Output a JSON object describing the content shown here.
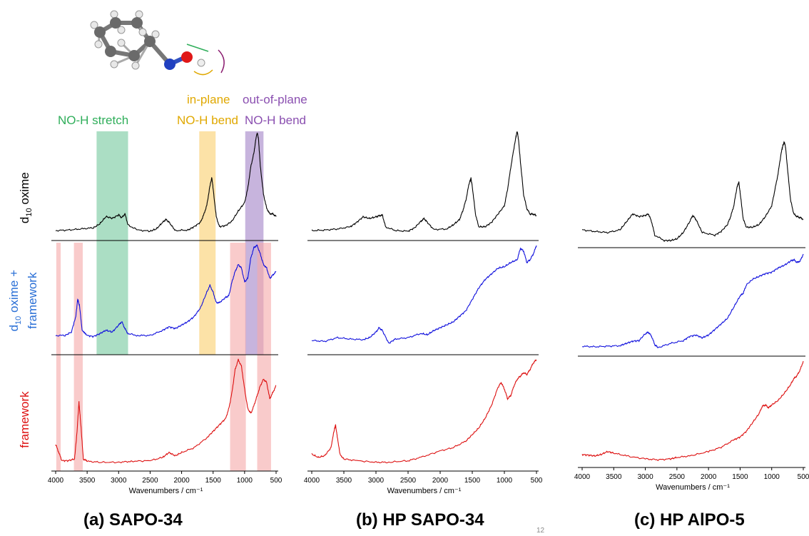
{
  "labels": {
    "nh_stretch": "NO-H stretch",
    "inplane_1": "in-plane",
    "inplane_2": "NO-H bend",
    "outplane_1": "out-of-plane",
    "outplane_2": "NO-H bend",
    "row_oxime": "d10 oxime",
    "row_both_1": "d10 oxime +",
    "row_both_2": "framework",
    "row_framework": "framework",
    "page_number": "12"
  },
  "colors": {
    "stretch_band": "#8fd3b0",
    "inplane_band": "#fbd88a",
    "outplane_band": "#b49bd2",
    "framework_band": "#f5a9a9",
    "stretch_text": "#2fae5a",
    "inplane_text": "#e0a800",
    "outplane_text": "#8a4fb0",
    "oxime_line": "#000000",
    "both_line": "#1010dd",
    "framework_line": "#dd1111"
  },
  "chart_data": [
    {
      "type": "line",
      "panel_title": "(a) SAPO-34",
      "xlabel": "Wavenumbers / cm⁻¹",
      "xlim": [
        4000,
        500
      ],
      "xticks": [
        4000,
        3500,
        3000,
        2500,
        2000,
        1500,
        1000,
        500
      ],
      "highlight_bands": [
        {
          "name": "NO-H stretch",
          "range": [
            3350,
            2850
          ]
        },
        {
          "name": "in-plane NO-H bend",
          "range": [
            1720,
            1460
          ]
        },
        {
          "name": "out-of-plane NO-H bend",
          "range": [
            990,
            700
          ]
        },
        {
          "name": "framework",
          "range": [
            3990,
            3920
          ]
        },
        {
          "name": "framework",
          "range": [
            3710,
            3570
          ]
        },
        {
          "name": "framework",
          "range": [
            1230,
            980
          ]
        },
        {
          "name": "framework",
          "range": [
            800,
            580
          ]
        }
      ],
      "series": [
        {
          "name": "d10 oxime",
          "x": [
            4000,
            3800,
            3600,
            3400,
            3300,
            3200,
            3100,
            3000,
            2950,
            2900,
            2850,
            2700,
            2500,
            2400,
            2300,
            2250,
            2200,
            2100,
            1900,
            1800,
            1700,
            1650,
            1600,
            1550,
            1520,
            1500,
            1450,
            1400,
            1300,
            1200,
            1100,
            1000,
            950,
            900,
            850,
            820,
            800,
            780,
            750,
            700,
            650,
            600,
            550,
            500
          ],
          "y": [
            0.05,
            0.06,
            0.08,
            0.1,
            0.17,
            0.3,
            0.27,
            0.33,
            0.28,
            0.35,
            0.15,
            0.06,
            0.04,
            0.08,
            0.2,
            0.25,
            0.2,
            0.05,
            0.06,
            0.12,
            0.2,
            0.33,
            0.5,
            0.85,
            1.0,
            0.8,
            0.3,
            0.12,
            0.14,
            0.22,
            0.4,
            0.55,
            0.8,
            1.2,
            1.45,
            1.7,
            1.8,
            1.7,
            1.2,
            0.7,
            0.45,
            0.35,
            0.35,
            0.3
          ]
        },
        {
          "name": "d10 oxime + framework",
          "x": [
            4000,
            3850,
            3750,
            3680,
            3650,
            3620,
            3580,
            3500,
            3400,
            3300,
            3200,
            3100,
            3000,
            2950,
            2900,
            2850,
            2700,
            2500,
            2300,
            2200,
            2100,
            2000,
            1900,
            1800,
            1700,
            1600,
            1550,
            1500,
            1450,
            1400,
            1300,
            1250,
            1200,
            1150,
            1100,
            1050,
            1000,
            950,
            900,
            850,
            800,
            750,
            700,
            650,
            600,
            550,
            500
          ],
          "y": [
            0.35,
            0.35,
            0.45,
            0.9,
            1.4,
            1.2,
            0.5,
            0.35,
            0.32,
            0.4,
            0.5,
            0.45,
            0.65,
            0.75,
            0.55,
            0.4,
            0.35,
            0.35,
            0.5,
            0.6,
            0.55,
            0.65,
            0.75,
            0.9,
            1.15,
            1.6,
            1.8,
            1.6,
            1.3,
            1.3,
            1.45,
            1.5,
            1.9,
            2.2,
            2.4,
            2.3,
            1.9,
            2.0,
            2.6,
            2.9,
            2.95,
            2.7,
            2.4,
            2.3,
            2.0,
            2.1,
            2.2
          ]
        },
        {
          "name": "framework",
          "x": [
            4000,
            3950,
            3900,
            3800,
            3700,
            3660,
            3630,
            3600,
            3560,
            3500,
            3300,
            3000,
            2800,
            2500,
            2300,
            2200,
            2100,
            2000,
            1800,
            1600,
            1500,
            1400,
            1300,
            1250,
            1200,
            1150,
            1100,
            1050,
            1000,
            950,
            900,
            850,
            800,
            750,
            700,
            650,
            600,
            550,
            500
          ],
          "y": [
            0.6,
            0.35,
            0.1,
            0.1,
            0.15,
            1.0,
            1.9,
            1.2,
            0.15,
            0.08,
            0.05,
            0.05,
            0.08,
            0.1,
            0.2,
            0.35,
            0.25,
            0.35,
            0.5,
            0.8,
            1.0,
            1.2,
            1.4,
            1.7,
            2.2,
            2.9,
            3.2,
            3.0,
            2.3,
            1.7,
            1.55,
            1.8,
            2.1,
            2.4,
            2.6,
            2.5,
            2.0,
            2.2,
            2.4
          ]
        }
      ]
    },
    {
      "type": "line",
      "panel_title": "(b) HP SAPO-34",
      "xlabel": "Wavenumbers / cm⁻¹",
      "xlim": [
        4000,
        500
      ],
      "xticks": [
        4000,
        3500,
        3000,
        2500,
        2000,
        1500,
        1000,
        500
      ],
      "series": [
        {
          "name": "d10 oxime",
          "x": [
            4000,
            3800,
            3600,
            3400,
            3300,
            3200,
            3100,
            3000,
            2950,
            2900,
            2850,
            2700,
            2500,
            2400,
            2300,
            2250,
            2200,
            2100,
            1900,
            1800,
            1700,
            1650,
            1600,
            1550,
            1520,
            1500,
            1450,
            1400,
            1300,
            1200,
            1100,
            1000,
            950,
            900,
            850,
            820,
            800,
            780,
            750,
            700,
            650,
            600,
            550,
            500
          ],
          "y": [
            0.05,
            0.06,
            0.08,
            0.12,
            0.2,
            0.3,
            0.27,
            0.3,
            0.32,
            0.33,
            0.12,
            0.05,
            0.04,
            0.1,
            0.22,
            0.27,
            0.2,
            0.07,
            0.08,
            0.15,
            0.25,
            0.4,
            0.6,
            0.9,
            1.0,
            0.85,
            0.35,
            0.12,
            0.12,
            0.2,
            0.35,
            0.5,
            0.8,
            1.2,
            1.55,
            1.75,
            1.85,
            1.7,
            1.3,
            0.7,
            0.45,
            0.35,
            0.35,
            0.32
          ]
        },
        {
          "name": "d10 oxime + framework",
          "x": [
            4000,
            3800,
            3600,
            3400,
            3200,
            3100,
            3000,
            2950,
            2900,
            2800,
            2700,
            2500,
            2300,
            2200,
            2100,
            2000,
            1900,
            1800,
            1700,
            1600,
            1500,
            1400,
            1300,
            1200,
            1100,
            1000,
            900,
            800,
            750,
            700,
            650,
            600,
            550,
            500
          ],
          "y": [
            0.25,
            0.22,
            0.35,
            0.3,
            0.28,
            0.35,
            0.55,
            0.7,
            0.6,
            0.15,
            0.3,
            0.35,
            0.5,
            0.45,
            0.6,
            0.7,
            0.8,
            0.9,
            1.1,
            1.3,
            1.7,
            2.1,
            2.4,
            2.6,
            2.8,
            2.85,
            3.0,
            3.1,
            3.5,
            3.4,
            3.0,
            3.1,
            3.3,
            3.6
          ]
        },
        {
          "name": "framework",
          "x": [
            4000,
            3900,
            3800,
            3700,
            3660,
            3630,
            3600,
            3560,
            3500,
            3300,
            3000,
            2800,
            2500,
            2300,
            2000,
            1800,
            1600,
            1500,
            1400,
            1300,
            1200,
            1100,
            1050,
            1000,
            950,
            900,
            850,
            800,
            750,
            700,
            650,
            600,
            550,
            500
          ],
          "y": [
            0.3,
            0.2,
            0.25,
            0.5,
            0.95,
            1.2,
            0.8,
            0.3,
            0.15,
            0.1,
            0.05,
            0.05,
            0.1,
            0.2,
            0.4,
            0.5,
            0.7,
            0.9,
            1.1,
            1.4,
            1.8,
            2.35,
            2.5,
            2.3,
            2.0,
            2.1,
            2.4,
            2.6,
            2.7,
            2.8,
            2.75,
            2.9,
            3.1,
            3.2
          ]
        }
      ]
    },
    {
      "type": "line",
      "panel_title": "(c) HP AlPO-5",
      "xlabel": "Wavenumbers / cm⁻¹",
      "xlim": [
        4000,
        500
      ],
      "xticks": [
        4000,
        3500,
        3000,
        2500,
        2000,
        1500,
        1000,
        500
      ],
      "series": [
        {
          "name": "d10 oxime",
          "x": [
            4000,
            3800,
            3600,
            3400,
            3300,
            3200,
            3100,
            3000,
            2950,
            2900,
            2850,
            2700,
            2600,
            2500,
            2400,
            2300,
            2250,
            2200,
            2100,
            1900,
            1800,
            1700,
            1650,
            1600,
            1550,
            1520,
            1500,
            1450,
            1400,
            1300,
            1200,
            1100,
            1000,
            950,
            900,
            850,
            820,
            800,
            780,
            750,
            700,
            650,
            600,
            550,
            500
          ],
          "y": [
            0.15,
            0.12,
            0.1,
            0.15,
            0.3,
            0.45,
            0.4,
            0.42,
            0.45,
            0.3,
            0.05,
            -0.05,
            -0.05,
            -0.02,
            0.1,
            0.3,
            0.42,
            0.35,
            0.1,
            0.05,
            0.12,
            0.25,
            0.4,
            0.6,
            0.95,
            1.05,
            0.85,
            0.35,
            0.2,
            0.2,
            0.25,
            0.4,
            0.6,
            0.9,
            1.2,
            1.6,
            1.75,
            1.8,
            1.7,
            1.3,
            0.7,
            0.45,
            0.4,
            0.38,
            0.35
          ]
        },
        {
          "name": "d10 oxime + framework",
          "x": [
            4000,
            3800,
            3600,
            3400,
            3300,
            3200,
            3100,
            3000,
            2950,
            2900,
            2850,
            2800,
            2600,
            2400,
            2300,
            2200,
            2100,
            2000,
            1900,
            1800,
            1700,
            1600,
            1500,
            1450,
            1400,
            1300,
            1200,
            1100,
            1000,
            900,
            800,
            700,
            650,
            600,
            550,
            500
          ],
          "y": [
            0.1,
            0.08,
            0.1,
            0.12,
            0.2,
            0.28,
            0.3,
            0.55,
            0.6,
            0.45,
            0.15,
            0.05,
            0.2,
            0.3,
            0.45,
            0.5,
            0.4,
            0.5,
            0.7,
            0.9,
            1.1,
            1.5,
            1.9,
            2.0,
            2.3,
            2.5,
            2.6,
            2.7,
            2.75,
            2.9,
            3.0,
            3.15,
            3.2,
            3.1,
            3.15,
            3.4
          ]
        },
        {
          "name": "framework",
          "x": [
            4000,
            3900,
            3800,
            3700,
            3600,
            3500,
            3300,
            3000,
            2800,
            2600,
            2500,
            2300,
            2000,
            1800,
            1600,
            1500,
            1400,
            1300,
            1200,
            1150,
            1100,
            1050,
            1000,
            900,
            800,
            700,
            650,
            600,
            550,
            500
          ],
          "y": [
            0.2,
            0.18,
            0.15,
            0.2,
            0.3,
            0.25,
            0.15,
            0.05,
            0.02,
            0.05,
            0.1,
            0.15,
            0.3,
            0.45,
            0.7,
            0.8,
            1.0,
            1.3,
            1.6,
            1.85,
            1.9,
            1.8,
            1.9,
            2.05,
            2.3,
            2.6,
            2.8,
            2.9,
            3.1,
            3.4
          ]
        }
      ]
    }
  ]
}
